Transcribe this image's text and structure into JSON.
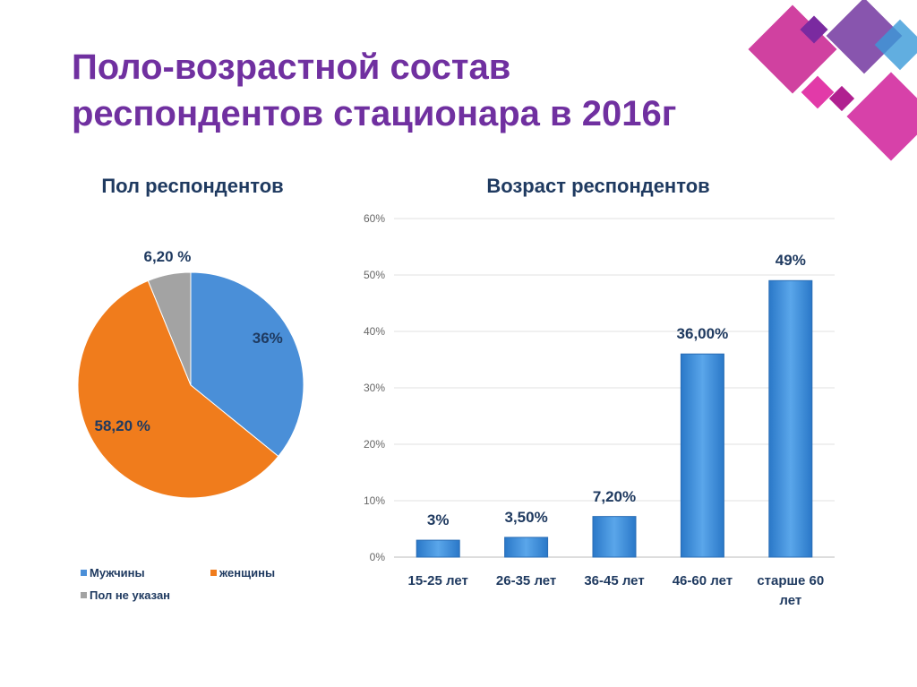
{
  "title": "Поло-возрастной состав респондентов стационара в 2016г",
  "chart_data": [
    {
      "type": "pie",
      "title": "Пол респондентов",
      "categories": [
        "Мужчины",
        "женщины",
        "Пол не указан"
      ],
      "values": [
        36,
        58.2,
        6.2
      ],
      "value_labels": [
        "36%",
        "58,20 %",
        "6,20 %"
      ],
      "colors": [
        "#4a8fd8",
        "#f07c1c",
        "#a3a3a3"
      ],
      "legend": "bottom"
    },
    {
      "type": "bar",
      "title": "Возраст респондентов",
      "categories": [
        "15-25 лет",
        "26-35 лет",
        "36-45 лет",
        "46-60 лет",
        "старше 60 лет"
      ],
      "values": [
        3,
        3.5,
        7.2,
        36,
        49
      ],
      "value_labels": [
        "3%",
        "3,50%",
        "7,20%",
        "36,00%",
        "49%"
      ],
      "color": "#3f8fd6",
      "ylim": [
        0,
        60
      ],
      "yticks": [
        {
          "value": 0,
          "label": "0%"
        },
        {
          "value": 10,
          "label": "10%"
        },
        {
          "value": 20,
          "label": "20%"
        },
        {
          "value": 30,
          "label": "30%"
        },
        {
          "value": 40,
          "label": "40%"
        },
        {
          "value": 50,
          "label": "50%"
        },
        {
          "value": 60,
          "label": "60%"
        }
      ],
      "grid": true
    }
  ]
}
